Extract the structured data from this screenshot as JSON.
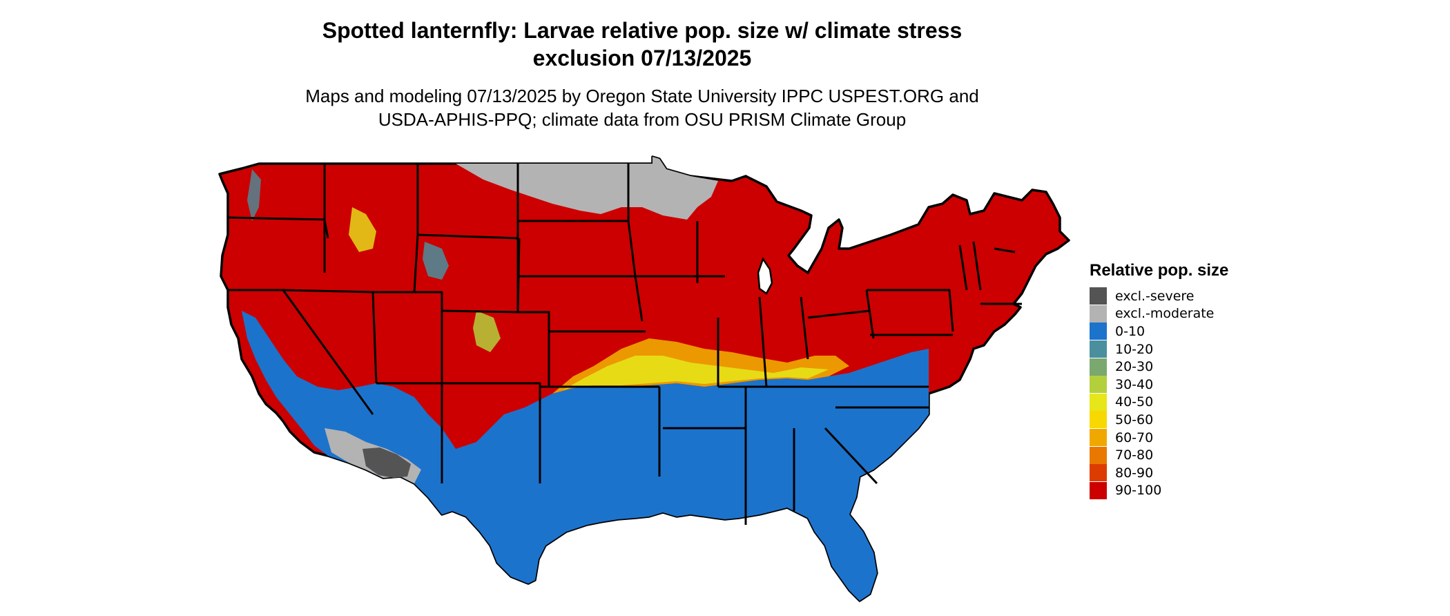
{
  "title_line1": "Spotted lanternfly: Larvae relative pop. size w/ climate stress",
  "title_line2": "exclusion 07/13/2025",
  "subtitle_line1": "Maps and modeling 07/13/2025 by Oregon State University IPPC USPEST.ORG and",
  "subtitle_line2": "USDA-APHIS-PPQ; climate data from OSU PRISM Climate Group",
  "legend": {
    "title": "Relative pop. size",
    "items": [
      {
        "label": "excl.-severe",
        "color": "#545454"
      },
      {
        "label": "excl.-moderate",
        "color": "#b3b3b3"
      },
      {
        "label": "0-10",
        "color": "#1c73cc"
      },
      {
        "label": "10-20",
        "color": "#4a8f9e"
      },
      {
        "label": "20-30",
        "color": "#7aa86e"
      },
      {
        "label": "30-40",
        "color": "#b4cf3c"
      },
      {
        "label": "40-50",
        "color": "#e6e61a"
      },
      {
        "label": "50-60",
        "color": "#f7d800"
      },
      {
        "label": "60-70",
        "color": "#f0a800"
      },
      {
        "label": "70-80",
        "color": "#e87800"
      },
      {
        "label": "80-90",
        "color": "#dd3c00"
      },
      {
        "label": "90-100",
        "color": "#cc0000"
      }
    ]
  },
  "colors": {
    "high": "#cc0000",
    "low": "#1c73cc",
    "moderate_excl": "#b3b3b3",
    "severe_excl": "#545454",
    "band_yellow": "#e6e61a",
    "band_orange": "#f0a800",
    "border": "#000000"
  }
}
